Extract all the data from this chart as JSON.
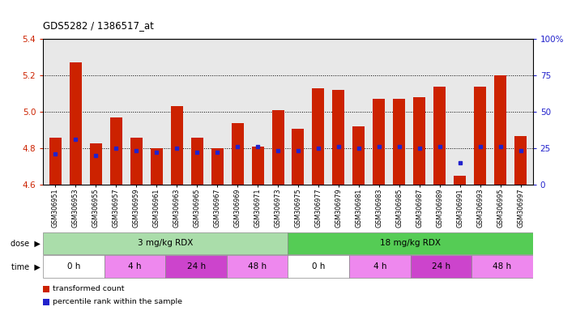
{
  "title": "GDS5282 / 1386517_at",
  "samples": [
    "GSM306951",
    "GSM306953",
    "GSM306955",
    "GSM306957",
    "GSM306959",
    "GSM306961",
    "GSM306963",
    "GSM306965",
    "GSM306967",
    "GSM306969",
    "GSM306971",
    "GSM306973",
    "GSM306975",
    "GSM306977",
    "GSM306979",
    "GSM306981",
    "GSM306983",
    "GSM306985",
    "GSM306987",
    "GSM306989",
    "GSM306991",
    "GSM306993",
    "GSM306995",
    "GSM306997"
  ],
  "bar_values": [
    4.86,
    5.27,
    4.83,
    4.97,
    4.86,
    4.8,
    5.03,
    4.86,
    4.8,
    4.94,
    4.81,
    5.01,
    4.91,
    5.13,
    5.12,
    4.92,
    5.07,
    5.07,
    5.08,
    5.14,
    4.65,
    5.14,
    5.2,
    4.87
  ],
  "percentile_values": [
    4.77,
    4.85,
    4.76,
    4.8,
    4.79,
    4.78,
    4.8,
    4.78,
    4.78,
    4.81,
    4.81,
    4.79,
    4.79,
    4.8,
    4.81,
    4.8,
    4.81,
    4.81,
    4.8,
    4.81,
    4.72,
    4.81,
    4.81,
    4.79
  ],
  "ymin": 4.6,
  "ymax": 5.4,
  "yticks_left": [
    4.6,
    4.8,
    5.0,
    5.2,
    5.4
  ],
  "yticks_right": [
    0,
    25,
    50,
    75,
    100
  ],
  "yticks_right_labels": [
    "0",
    "25",
    "50",
    "75",
    "100%"
  ],
  "dotted_lines": [
    4.8,
    5.0,
    5.2
  ],
  "bar_color": "#cc2200",
  "blue_color": "#2222cc",
  "bar_width": 0.6,
  "dose_groups": [
    {
      "label": "3 mg/kg RDX",
      "start": 0,
      "end": 12,
      "color": "#aaddaa"
    },
    {
      "label": "18 mg/kg RDX",
      "start": 12,
      "end": 24,
      "color": "#55cc55"
    }
  ],
  "time_groups": [
    {
      "label": "0 h",
      "start": 0,
      "end": 3,
      "color": "#ffffff"
    },
    {
      "label": "4 h",
      "start": 3,
      "end": 6,
      "color": "#ee88ee"
    },
    {
      "label": "24 h",
      "start": 6,
      "end": 9,
      "color": "#cc44cc"
    },
    {
      "label": "48 h",
      "start": 9,
      "end": 12,
      "color": "#ee88ee"
    },
    {
      "label": "0 h",
      "start": 12,
      "end": 15,
      "color": "#ffffff"
    },
    {
      "label": "4 h",
      "start": 15,
      "end": 18,
      "color": "#ee88ee"
    },
    {
      "label": "24 h",
      "start": 18,
      "end": 21,
      "color": "#cc44cc"
    },
    {
      "label": "48 h",
      "start": 21,
      "end": 24,
      "color": "#ee88ee"
    }
  ],
  "legend_items": [
    {
      "label": "transformed count",
      "color": "#cc2200"
    },
    {
      "label": "percentile rank within the sample",
      "color": "#2222cc"
    }
  ],
  "bg_color": "#e8e8e8"
}
